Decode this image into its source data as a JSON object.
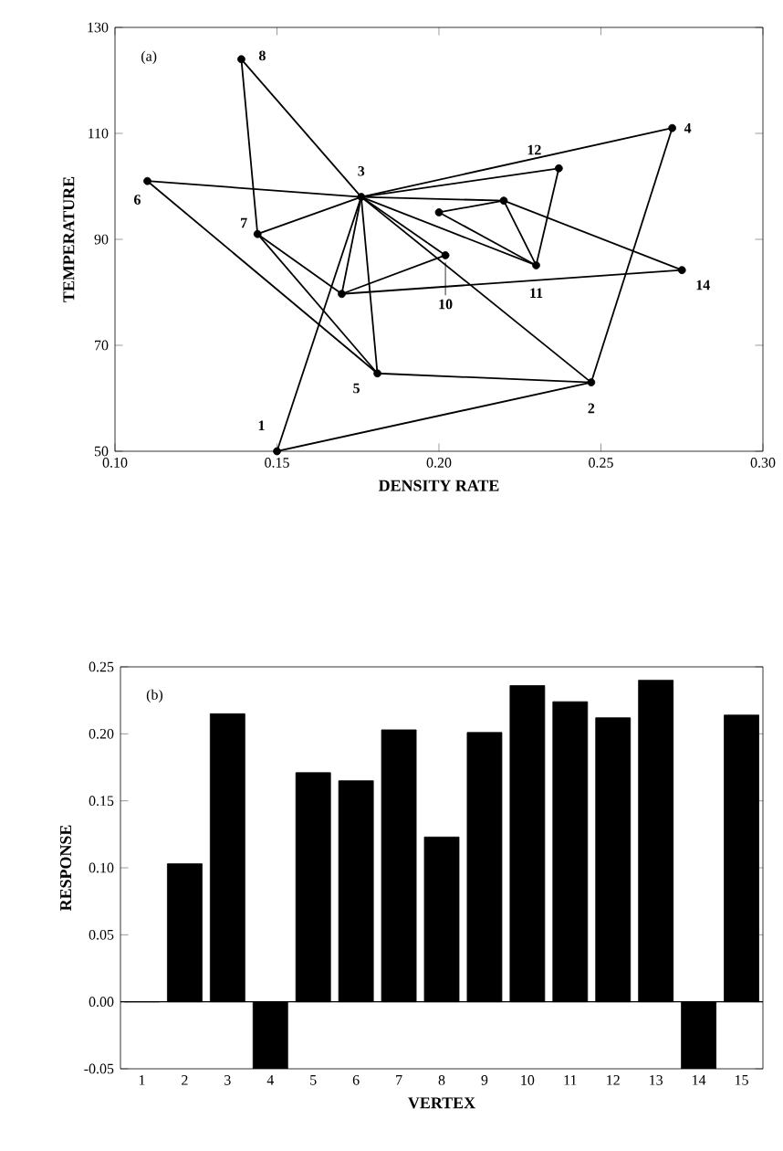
{
  "chart_data": [
    {
      "type": "line",
      "xlabel": "DENSITY RATE",
      "ylabel": "TEMPERATURE",
      "xlim": [
        0.1,
        0.3
      ],
      "ylim": [
        50,
        130
      ],
      "xticks": [
        {
          "value": 0.1,
          "label": "0.10"
        },
        {
          "value": 0.15,
          "label": "0.15"
        },
        {
          "value": 0.2,
          "label": "0.20"
        },
        {
          "value": 0.25,
          "label": "0.25"
        },
        {
          "value": 0.3,
          "label": "0.30"
        }
      ],
      "yticks": [
        50,
        70,
        90,
        110,
        130
      ],
      "annotations": [
        "(a)",
        {
          "text": "1",
          "x": 0.15,
          "y": 50
        },
        {
          "text": "2",
          "x": 0.247,
          "y": 63
        },
        {
          "text": "3",
          "x": 0.176,
          "y": 98
        },
        {
          "text": "4",
          "x": 0.272,
          "y": 111
        },
        {
          "text": "5",
          "x": 0.181,
          "y": 64.7
        },
        {
          "text": "6",
          "x": 0.11,
          "y": 101
        },
        {
          "text": "7",
          "x": 0.144,
          "y": 91
        },
        {
          "text": "8",
          "x": 0.139,
          "y": 124
        },
        {
          "text": "10",
          "x": 0.202,
          "y": 87
        },
        {
          "text": "11",
          "x": 0.23,
          "y": 85.1
        },
        {
          "text": "12",
          "x": 0.237,
          "y": 103.4
        },
        {
          "text": "14",
          "x": 0.275,
          "y": 84.2
        }
      ],
      "series": [
        {
          "type": "line",
          "color": "#000000",
          "x": [
            0.15,
            0.247
          ],
          "values": [
            50,
            63
          ]
        },
        {
          "type": "line",
          "color": "#000000",
          "x": [
            0.15,
            0.176
          ],
          "values": [
            50,
            98
          ]
        },
        {
          "type": "line",
          "color": "#000000",
          "x": [
            0.247,
            0.272
          ],
          "values": [
            63,
            111
          ]
        },
        {
          "type": "line",
          "color": "#000000",
          "x": [
            0.247,
            0.176
          ],
          "values": [
            63,
            98
          ]
        },
        {
          "type": "line",
          "color": "#000000",
          "x": [
            0.247,
            0.181
          ],
          "values": [
            63,
            64.7
          ]
        },
        {
          "type": "line",
          "color": "#000000",
          "x": [
            0.176,
            0.272
          ],
          "values": [
            98,
            111
          ]
        },
        {
          "type": "line",
          "color": "#000000",
          "x": [
            0.176,
            0.237
          ],
          "values": [
            98,
            103.4
          ]
        },
        {
          "type": "line",
          "color": "#000000",
          "x": [
            0.176,
            0.139
          ],
          "values": [
            98,
            124
          ]
        },
        {
          "type": "line",
          "color": "#000000",
          "x": [
            0.176,
            0.144
          ],
          "values": [
            98,
            91
          ]
        },
        {
          "type": "line",
          "color": "#000000",
          "x": [
            0.176,
            0.181
          ],
          "values": [
            98,
            64.7
          ]
        },
        {
          "type": "line",
          "color": "#000000",
          "x": [
            0.176,
            0.17
          ],
          "values": [
            98,
            79.7
          ]
        },
        {
          "type": "line",
          "color": "#000000",
          "x": [
            0.176,
            0.202
          ],
          "values": [
            98,
            87
          ]
        },
        {
          "type": "line",
          "color": "#000000",
          "x": [
            0.176,
            0.23
          ],
          "values": [
            98,
            85.1
          ]
        },
        {
          "type": "line",
          "color": "#000000",
          "x": [
            0.176,
            0.22
          ],
          "values": [
            98,
            97.3
          ]
        },
        {
          "type": "line",
          "color": "#000000",
          "x": [
            0.11,
            0.176
          ],
          "values": [
            101,
            98
          ]
        },
        {
          "type": "line",
          "color": "#000000",
          "x": [
            0.11,
            0.181
          ],
          "values": [
            101,
            64.7
          ]
        },
        {
          "type": "line",
          "color": "#000000",
          "x": [
            0.139,
            0.144
          ],
          "values": [
            124,
            91
          ]
        },
        {
          "type": "line",
          "color": "#000000",
          "x": [
            0.144,
            0.181
          ],
          "values": [
            91,
            64.7
          ]
        },
        {
          "type": "line",
          "color": "#000000",
          "x": [
            0.144,
            0.17
          ],
          "values": [
            91,
            79.7
          ]
        },
        {
          "type": "line",
          "color": "#000000",
          "x": [
            0.17,
            0.202
          ],
          "values": [
            79.7,
            87
          ]
        },
        {
          "type": "line",
          "color": "#000000",
          "x": [
            0.17,
            0.275
          ],
          "values": [
            79.7,
            84.2
          ]
        },
        {
          "type": "line",
          "color": "#000000",
          "x": [
            0.2,
            0.22
          ],
          "values": [
            95.1,
            97.3
          ]
        },
        {
          "type": "line",
          "color": "#000000",
          "x": [
            0.2,
            0.23
          ],
          "values": [
            95.1,
            85.1
          ]
        },
        {
          "type": "line",
          "color": "#000000",
          "x": [
            0.22,
            0.23
          ],
          "values": [
            97.3,
            85.1
          ]
        },
        {
          "type": "line",
          "color": "#000000",
          "x": [
            0.22,
            0.275
          ],
          "values": [
            97.3,
            84.2
          ]
        },
        {
          "type": "line",
          "color": "#000000",
          "x": [
            0.237,
            0.23
          ],
          "values": [
            103.4,
            85.1
          ]
        },
        {
          "type": "scatter",
          "color": "#000000",
          "marker": "circle",
          "x": [
            0.15,
            0.247,
            0.176,
            0.272,
            0.181,
            0.11,
            0.144,
            0.139,
            0.17,
            0.202,
            0.23,
            0.237,
            0.2,
            0.22,
            0.275
          ],
          "values": [
            50,
            63,
            98,
            111,
            64.7,
            101,
            91,
            124,
            79.7,
            87,
            85.1,
            103.4,
            95.1,
            97.3,
            84.2
          ]
        }
      ]
    },
    {
      "type": "bar",
      "xlabel": "VERTEX",
      "ylabel": "RESPONSE",
      "color": "#000000",
      "ylim": [
        -0.05,
        0.25
      ],
      "yticks": [
        {
          "value": -0.05,
          "label": "-0.05"
        },
        {
          "value": 0,
          "label": "0.00"
        },
        {
          "value": 0.05,
          "label": "0.05"
        },
        {
          "value": 0.1,
          "label": "0.10"
        },
        {
          "value": 0.15,
          "label": "0.15"
        },
        {
          "value": 0.2,
          "label": "0.20"
        },
        {
          "value": 0.25,
          "label": "0.25"
        }
      ],
      "categories": [
        "1",
        "2",
        "3",
        "4",
        "5",
        "6",
        "7",
        "8",
        "9",
        "10",
        "11",
        "12",
        "13",
        "14",
        "15"
      ],
      "values": [
        0,
        0.103,
        0.215,
        -0.05,
        0.171,
        0.165,
        0.203,
        0.123,
        0.201,
        0.236,
        0.224,
        0.212,
        0.24,
        -0.05,
        0.214
      ],
      "ref_lines": [
        {
          "axis": "y",
          "value": 0
        }
      ],
      "annotations": [
        "(b)"
      ]
    }
  ]
}
